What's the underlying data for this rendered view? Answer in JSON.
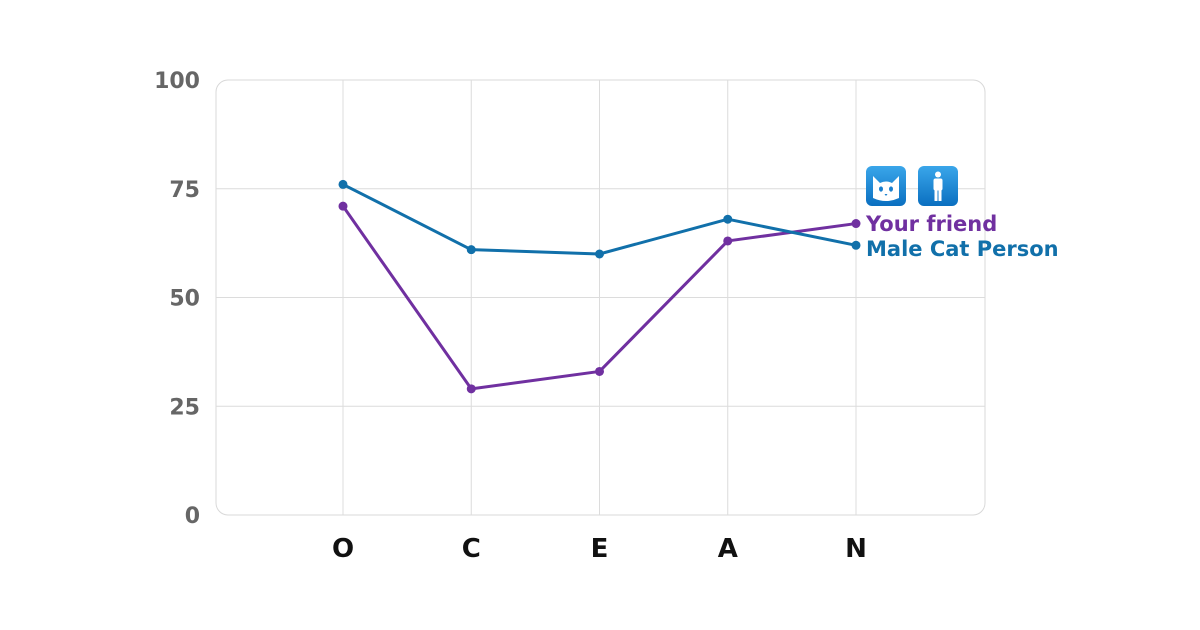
{
  "chart_data": {
    "type": "line",
    "categories": [
      "O",
      "C",
      "E",
      "A",
      "N"
    ],
    "yticks": [
      "0",
      "25",
      "50",
      "75",
      "100"
    ],
    "ylim": [
      0,
      100
    ],
    "grid": true,
    "series": [
      {
        "name": "Your friend",
        "color": "#7030a0",
        "icon": "cat-icon",
        "values": [
          71,
          29,
          33,
          63,
          67
        ]
      },
      {
        "name": "Male Cat Person",
        "color": "#1170aa",
        "icon": "male-person-icon",
        "values": [
          76,
          61,
          60,
          68,
          62
        ]
      }
    ]
  }
}
